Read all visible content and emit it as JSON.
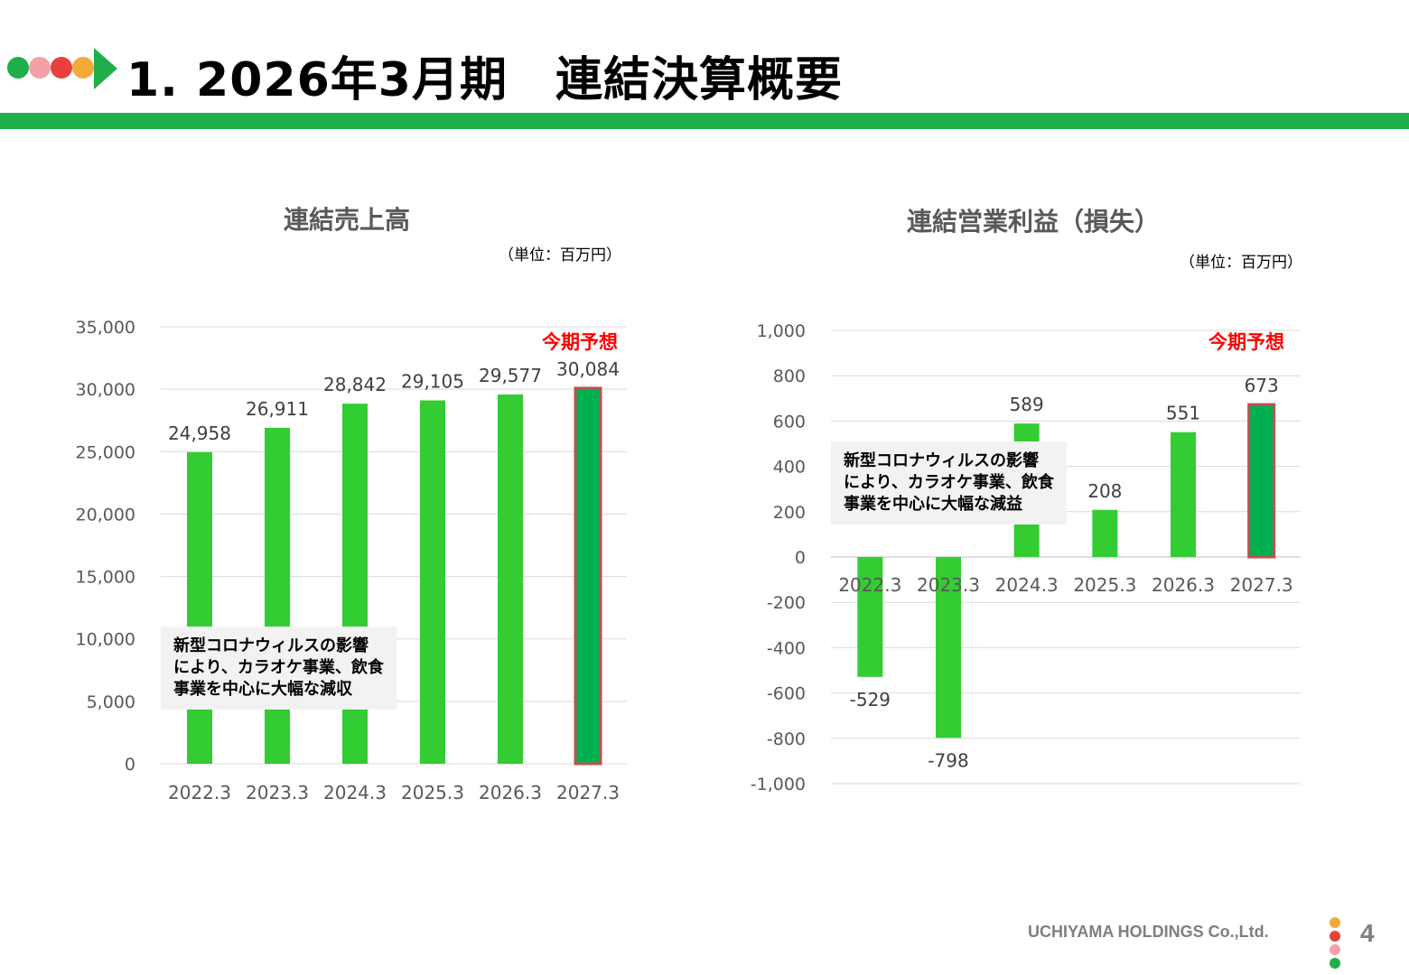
{
  "colors": {
    "accent_green": "#1fae4a",
    "bar_green": "#33cc33",
    "forecast_bar": "#00b050",
    "forecast_border": "#c0504d",
    "forecast_text": "#ff0000",
    "dot_green": "#1fae4a",
    "dot_pink": "#f4a0a8",
    "dot_red": "#e8413c",
    "dot_orange": "#f5a93b"
  },
  "header": {
    "title": "1. 2026年3月期　連結決算概要"
  },
  "footer": {
    "company": "UCHIYAMA HOLDINGS Co.,Ltd.",
    "page": "4"
  },
  "sales": {
    "title": "連結売上高",
    "unit": "（単位：百万円）",
    "forecast_label": "今期予想",
    "note": [
      "新型コロナウィルスの影響",
      "により、カラオケ事業、飲食",
      "事業を中心に大幅な減収"
    ]
  },
  "profit": {
    "title": "連結営業利益（損失）",
    "unit": "（単位：百万円）",
    "forecast_label": "今期予想",
    "note": [
      "新型コロナウィルスの影響",
      "により、カラオケ事業、飲食",
      "事業を中心に大幅な減益"
    ]
  },
  "chart_data": [
    {
      "type": "bar",
      "title": "連結売上高",
      "categories": [
        "2022.3",
        "2023.3",
        "2024.3",
        "2025.3",
        "2026.3",
        "2027.3"
      ],
      "values": [
        24958,
        26911,
        28842,
        29105,
        29577,
        30084
      ],
      "value_labels": [
        "24,958",
        "26,911",
        "28,842",
        "29,105",
        "29,577",
        "30,084"
      ],
      "ylim": [
        0,
        35000
      ],
      "yticks": [
        0,
        5000,
        10000,
        15000,
        20000,
        25000,
        30000,
        35000
      ],
      "ytick_labels": [
        "0",
        "5,000",
        "10,000",
        "15,000",
        "20,000",
        "25,000",
        "30,000",
        "35,000"
      ],
      "forecast_index": 5,
      "grid": true,
      "legend": "none"
    },
    {
      "type": "bar",
      "title": "連結営業利益（損失）",
      "categories": [
        "2022.3",
        "2023.3",
        "2024.3",
        "2025.3",
        "2026.3",
        "2027.3"
      ],
      "values": [
        -529,
        -798,
        589,
        208,
        551,
        673
      ],
      "value_labels": [
        "-529",
        "-798",
        "589",
        "208",
        "551",
        "673"
      ],
      "ylim": [
        -1000,
        1000
      ],
      "yticks": [
        -1000,
        -800,
        -600,
        -400,
        -200,
        0,
        200,
        400,
        600,
        800,
        1000
      ],
      "ytick_labels": [
        "-1,000",
        "-800",
        "-600",
        "-400",
        "-200",
        "0",
        "200",
        "400",
        "600",
        "800",
        "1,000"
      ],
      "forecast_index": 5,
      "grid": true,
      "legend": "none"
    }
  ]
}
